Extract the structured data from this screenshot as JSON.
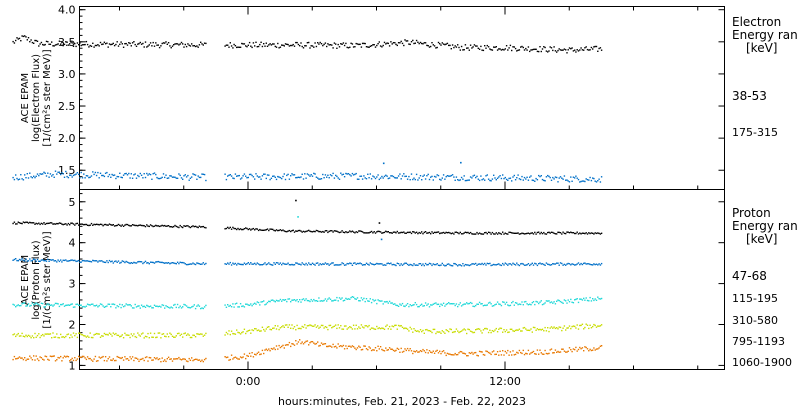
{
  "chart_data": {
    "type": "scatter",
    "xlabel": "hours:minutes, Feb. 21, 2023 - Feb. 22, 2023",
    "x_tick_labels": [
      "0:00",
      "12:00"
    ],
    "panels": [
      {
        "id": "electron",
        "ylabel": [
          "ACE EPAM",
          "log(Electron Flux)",
          "[1/(cm²s ster MeV)]"
        ],
        "ylim": [
          1.2,
          4.05
        ],
        "yticks": [
          1.5,
          2.0,
          2.5,
          3.0,
          3.5,
          4.0
        ],
        "ytick_labels": [
          "1.5",
          "2.0",
          "2.5",
          "3.0",
          "3.5",
          "4.0"
        ],
        "legend_title": [
          "Electron",
          "Energy ran",
          "[keV]"
        ],
        "series": [
          {
            "name": "38-53",
            "color": "#000000",
            "level": 3.45,
            "noise": 0.045,
            "profile": [
              [
                -11,
                3.5
              ],
              [
                -10.5,
                3.58
              ],
              [
                -9.8,
                3.48
              ],
              [
                -2,
                3.46
              ],
              [
                2,
                3.46
              ],
              [
                5,
                3.45
              ],
              [
                7.5,
                3.5
              ],
              [
                10,
                3.42
              ],
              [
                12,
                3.42
              ],
              [
                15,
                3.38
              ],
              [
                16.5,
                3.4
              ]
            ]
          },
          {
            "name": "175-315",
            "color": "#0070c8",
            "level": 1.4,
            "noise": 0.05,
            "profile": [
              [
                -11,
                1.4
              ],
              [
                -9,
                1.45
              ],
              [
                -2,
                1.4
              ],
              [
                5,
                1.42
              ],
              [
                10,
                1.4
              ],
              [
                16.5,
                1.37
              ]
            ]
          }
        ]
      },
      {
        "id": "proton",
        "ylabel": [
          "ACE EPAM",
          "log(Proton Flux)",
          "[1/(cm²s ster MeV)]"
        ],
        "ylim": [
          0.9,
          5.3
        ],
        "yticks": [
          1,
          2,
          3,
          4,
          5
        ],
        "ytick_labels": [
          "1",
          "2",
          "3",
          "4",
          "5"
        ],
        "legend_title": [
          "Proton",
          "Energy ran",
          "[keV]"
        ],
        "series": [
          {
            "name": "47-68",
            "color": "#000000",
            "noise": 0.025,
            "profile": [
              [
                -11,
                4.5
              ],
              [
                -2,
                4.4
              ],
              [
                2,
                4.3
              ],
              [
                10,
                4.25
              ],
              [
                16.5,
                4.25
              ]
            ]
          },
          {
            "name": "115-195",
            "color": "#0070c8",
            "noise": 0.03,
            "profile": [
              [
                -11,
                3.6
              ],
              [
                -2,
                3.5
              ],
              [
                2,
                3.5
              ],
              [
                10,
                3.48
              ],
              [
                16.5,
                3.5
              ]
            ]
          },
          {
            "name": "310-580",
            "color": "#20d8d8",
            "noise": 0.05,
            "profile": [
              [
                -11,
                2.5
              ],
              [
                -2,
                2.45
              ],
              [
                0,
                2.5
              ],
              [
                1.5,
                2.6
              ],
              [
                5,
                2.65
              ],
              [
                7,
                2.5
              ],
              [
                10,
                2.5
              ],
              [
                14,
                2.55
              ],
              [
                16.5,
                2.65
              ]
            ]
          },
          {
            "name": "795-1193",
            "color": "#c8dc00",
            "noise": 0.06,
            "profile": [
              [
                -11,
                1.75
              ],
              [
                -2,
                1.75
              ],
              [
                0,
                1.85
              ],
              [
                1.5,
                1.95
              ],
              [
                3,
                1.95
              ],
              [
                7,
                1.95
              ],
              [
                8,
                1.85
              ],
              [
                10,
                1.85
              ],
              [
                14,
                1.9
              ],
              [
                16.5,
                2.0
              ]
            ]
          },
          {
            "name": "1060-1900",
            "color": "#e87800",
            "noise": 0.06,
            "profile": [
              [
                -11,
                1.2
              ],
              [
                -2,
                1.15
              ],
              [
                0,
                1.25
              ],
              [
                1.2,
                1.45
              ],
              [
                2.5,
                1.6
              ],
              [
                3.5,
                1.5
              ],
              [
                7,
                1.4
              ],
              [
                8,
                1.35
              ],
              [
                10,
                1.3
              ],
              [
                14,
                1.35
              ],
              [
                16.5,
                1.45
              ]
            ]
          }
        ]
      }
    ],
    "x_data_range_hours": [
      -11,
      16.5
    ],
    "data_gap_hours": [
      -2,
      -1.1
    ],
    "spikes": [
      {
        "panel": "proton",
        "x": 2.2,
        "y": 5.05,
        "color": "#000000"
      },
      {
        "panel": "proton",
        "x": 2.3,
        "y": 4.65,
        "color": "#20d8d8"
      },
      {
        "panel": "proton",
        "x": 6.1,
        "y": 4.5,
        "color": "#000000"
      },
      {
        "panel": "proton",
        "x": 6.2,
        "y": 4.1,
        "color": "#0070c8"
      },
      {
        "panel": "electron",
        "x": 6.3,
        "y": 1.62,
        "color": "#0070c8"
      },
      {
        "panel": "electron",
        "x": 9.9,
        "y": 1.63,
        "color": "#0070c8"
      }
    ]
  }
}
